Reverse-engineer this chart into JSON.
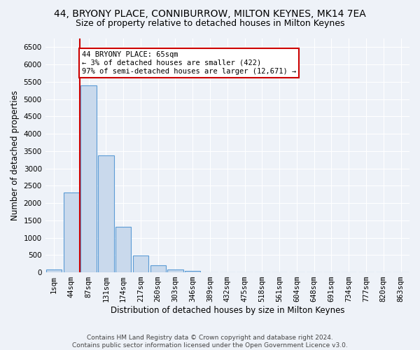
{
  "title1": "44, BRYONY PLACE, CONNIBURROW, MILTON KEYNES, MK14 7EA",
  "title2": "Size of property relative to detached houses in Milton Keynes",
  "xlabel": "Distribution of detached houses by size in Milton Keynes",
  "ylabel": "Number of detached properties",
  "footer": "Contains HM Land Registry data © Crown copyright and database right 2024.\nContains public sector information licensed under the Open Government Licence v3.0.",
  "categories": [
    "1sqm",
    "44sqm",
    "87sqm",
    "131sqm",
    "174sqm",
    "217sqm",
    "260sqm",
    "303sqm",
    "346sqm",
    "389sqm",
    "432sqm",
    "475sqm",
    "518sqm",
    "561sqm",
    "604sqm",
    "648sqm",
    "691sqm",
    "734sqm",
    "777sqm",
    "820sqm",
    "863sqm"
  ],
  "values": [
    75,
    2300,
    5400,
    3380,
    1320,
    480,
    195,
    80,
    45,
    5,
    5,
    5,
    5,
    0,
    0,
    0,
    0,
    0,
    0,
    0,
    0
  ],
  "bar_color": "#c9d9ec",
  "bar_edge_color": "#5b9bd5",
  "bar_linewidth": 0.8,
  "red_line_x": 1.5,
  "annotation_text": "44 BRYONY PLACE: 65sqm\n← 3% of detached houses are smaller (422)\n97% of semi-detached houses are larger (12,671) →",
  "annotation_box_color": "#ffffff",
  "annotation_box_edge": "#cc0000",
  "red_line_color": "#cc0000",
  "ylim": [
    0,
    6750
  ],
  "yticks": [
    0,
    500,
    1000,
    1500,
    2000,
    2500,
    3000,
    3500,
    4000,
    4500,
    5000,
    5500,
    6000,
    6500
  ],
  "bg_color": "#eef2f8",
  "grid_color": "#ffffff",
  "title1_fontsize": 10,
  "title2_fontsize": 9,
  "xlabel_fontsize": 8.5,
  "ylabel_fontsize": 8.5,
  "tick_fontsize": 7.5,
  "footer_fontsize": 6.5
}
